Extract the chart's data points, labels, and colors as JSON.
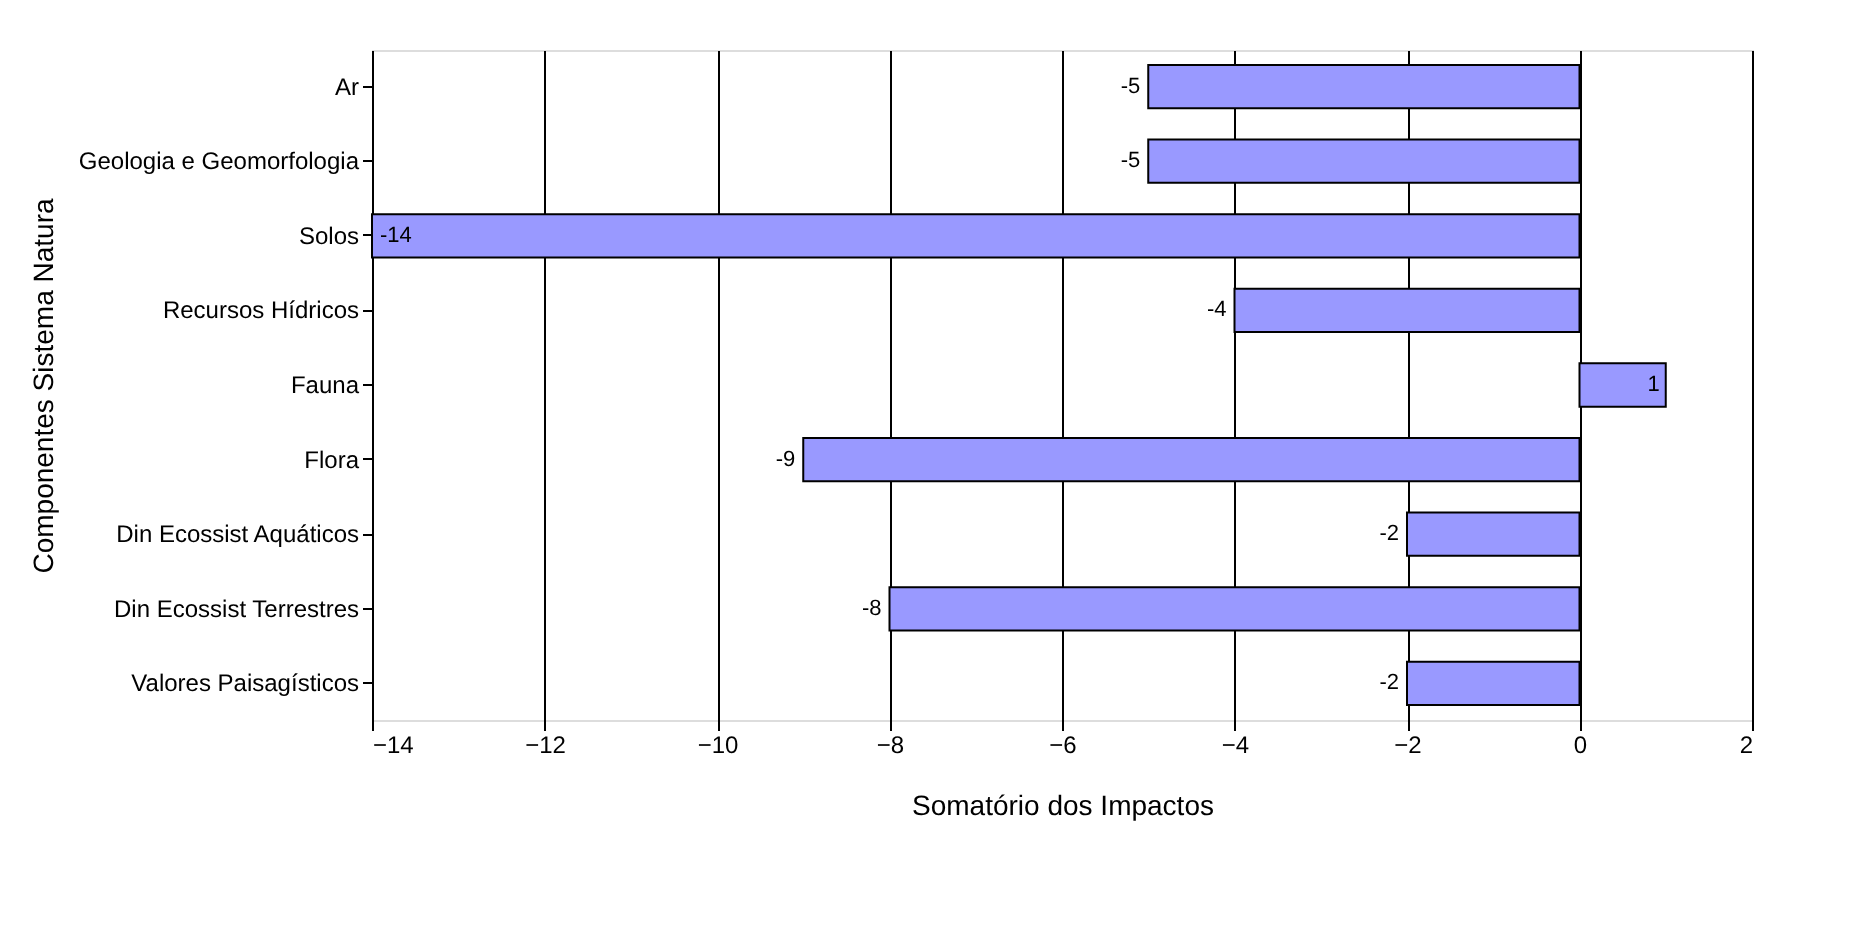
{
  "chart_data": {
    "type": "bar",
    "orientation": "horizontal",
    "xlabel": "Somatório dos Impactos",
    "ylabel": "Componentes Sistema Natura",
    "categories": [
      "Ar",
      "Geologia e Geomorfologia",
      "Solos",
      "Recursos Hídricos",
      "Fauna",
      "Flora",
      "Din Ecossist Aquáticos",
      "Din Ecossist Terrestres",
      "Valores Paisagísticos"
    ],
    "values": [
      -5,
      -5,
      -14,
      -4,
      1,
      -9,
      -2,
      -8,
      -2
    ],
    "color": "#9999ff",
    "xlim": [
      -14,
      2
    ],
    "xticks": [
      -14,
      -12,
      -10,
      -8,
      -6,
      -4,
      -2,
      0,
      2
    ],
    "grid": "x",
    "data_labels": true
  }
}
